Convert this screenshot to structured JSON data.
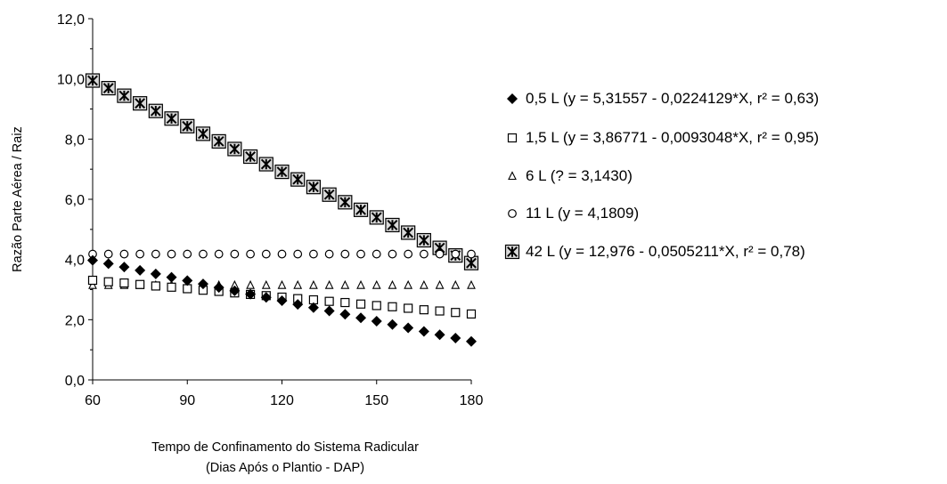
{
  "chart_data": {
    "type": "scatter",
    "title": "",
    "xlabel_lines": [
      "Tempo de Confinamento do Sistema Radicular",
      "(Dias Após o Plantio - DAP)"
    ],
    "ylabel": "Razão Parte Aérea / Raiz",
    "xlim": [
      60,
      180
    ],
    "ylim": [
      0,
      12
    ],
    "xticks": [
      60,
      90,
      120,
      150,
      180
    ],
    "xtick_labels": [
      "60",
      "90",
      "120",
      "150",
      "180"
    ],
    "yticks": [
      0,
      2,
      4,
      6,
      8,
      10,
      12
    ],
    "ytick_labels": [
      "0,0",
      "2,0",
      "4,0",
      "6,0",
      "8,0",
      "10,0",
      "12,0"
    ],
    "grid": false,
    "legend_position": "right",
    "x": [
      60,
      65,
      70,
      75,
      80,
      85,
      90,
      95,
      100,
      105,
      110,
      115,
      120,
      125,
      130,
      135,
      140,
      145,
      150,
      155,
      160,
      165,
      170,
      175,
      180
    ],
    "series": [
      {
        "name": "0,5 L (y = 5,31557 - 0,0224129*X, r² = 0,63)",
        "marker": "diamond-filled",
        "values": [
          3.97,
          3.86,
          3.75,
          3.64,
          3.52,
          3.41,
          3.3,
          3.19,
          3.07,
          2.96,
          2.85,
          2.74,
          2.63,
          2.51,
          2.4,
          2.29,
          2.18,
          2.06,
          1.95,
          1.84,
          1.73,
          1.61,
          1.5,
          1.39,
          1.28
        ]
      },
      {
        "name": "1,5 L (y = 3,86771 - 0,0093048*X, r² = 0,95)",
        "marker": "square-open",
        "values": [
          3.31,
          3.26,
          3.22,
          3.17,
          3.12,
          3.08,
          3.03,
          2.98,
          2.94,
          2.89,
          2.84,
          2.8,
          2.75,
          2.7,
          2.66,
          2.61,
          2.57,
          2.52,
          2.47,
          2.43,
          2.38,
          2.33,
          2.29,
          2.24,
          2.19
        ]
      },
      {
        "name": "6 L (? = 3,1430)",
        "marker": "triangle-open",
        "values": [
          3.143,
          3.143,
          3.143,
          3.143,
          3.143,
          3.143,
          3.143,
          3.143,
          3.143,
          3.143,
          3.143,
          3.143,
          3.143,
          3.143,
          3.143,
          3.143,
          3.143,
          3.143,
          3.143,
          3.143,
          3.143,
          3.143,
          3.143,
          3.143,
          3.143
        ]
      },
      {
        "name": "11 L (y = 4,1809)",
        "marker": "circle-open",
        "values": [
          4.181,
          4.181,
          4.181,
          4.181,
          4.181,
          4.181,
          4.181,
          4.181,
          4.181,
          4.181,
          4.181,
          4.181,
          4.181,
          4.181,
          4.181,
          4.181,
          4.181,
          4.181,
          4.181,
          4.181,
          4.181,
          4.181,
          4.181,
          4.181,
          4.181
        ]
      },
      {
        "name": "42 L (y = 12,976 - 0,0505211*X, r² = 0,78)",
        "marker": "boxed-asterisk",
        "values": [
          9.945,
          9.692,
          9.44,
          9.187,
          8.934,
          8.682,
          8.429,
          8.176,
          7.924,
          7.671,
          7.418,
          7.166,
          6.913,
          6.66,
          6.408,
          6.155,
          5.902,
          5.65,
          5.397,
          5.144,
          4.892,
          4.639,
          4.386,
          4.134,
          3.881
        ]
      }
    ]
  }
}
